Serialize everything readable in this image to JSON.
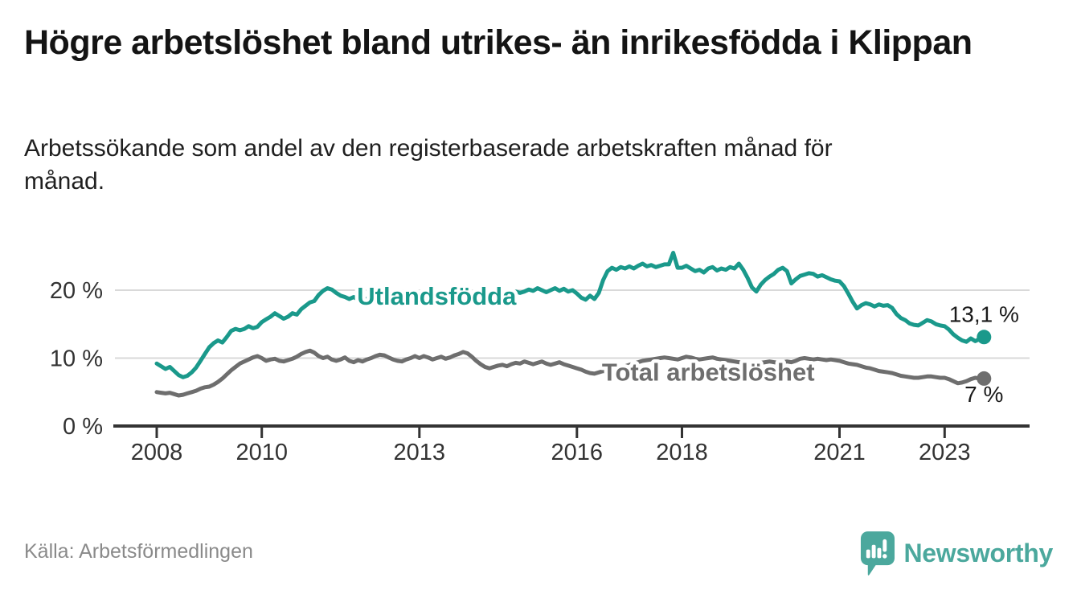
{
  "header": {
    "title": "Högre arbetslöshet bland utrikes- än inrikesfödda i Klippan",
    "subtitle": "Arbetssökande som andel av den registerbaserade arbetskraften månad för månad."
  },
  "footer": {
    "source": "Källa: Arbetsförmedlingen",
    "brand": "Newsworthy",
    "brand_icon": "speech-bubble-bar-chart-icon"
  },
  "colors": {
    "foreign_line": "#1a998b",
    "total_line": "#6e6e6e",
    "axis": "#333333",
    "grid": "#d9d9d9",
    "text": "#1a1a1a",
    "muted": "#8a8a8a",
    "brand": "#4ba89d"
  },
  "chart_data": {
    "type": "line",
    "title": "Högre arbetslöshet bland utrikes- än inrikesfödda i Klippan",
    "xlabel": "",
    "ylabel": "",
    "frequency": "monthly",
    "x_start_year": 2008,
    "x_end": "2023-10",
    "xlim": [
      2007.7,
      2024.6
    ],
    "ylim": [
      0,
      26
    ],
    "grid": "horizontal",
    "legend_position": "inline-labels",
    "x_ticks": [
      2008,
      2010,
      2013,
      2016,
      2018,
      2021,
      2023
    ],
    "y_ticks": [
      {
        "v": 0,
        "label": "0 %"
      },
      {
        "v": 10,
        "label": "10 %"
      },
      {
        "v": 20,
        "label": "20 %"
      }
    ],
    "series": [
      {
        "name": "Utlandsfödda",
        "slug": "utlandsfodda",
        "color": "#1a998b",
        "end_label": "13,1 %",
        "end_label_position": "above",
        "label_anchor": {
          "year": 2013.33,
          "value": 19.2
        },
        "values": [
          9.2,
          8.8,
          8.4,
          8.7,
          8.1,
          7.5,
          7.2,
          7.4,
          7.9,
          8.6,
          9.6,
          10.6,
          11.6,
          12.2,
          12.6,
          12.3,
          13.1,
          14.0,
          14.3,
          14.1,
          14.3,
          14.7,
          14.4,
          14.6,
          15.3,
          15.7,
          16.1,
          16.6,
          16.2,
          15.8,
          16.1,
          16.6,
          16.4,
          17.2,
          17.7,
          18.2,
          18.4,
          19.3,
          19.9,
          20.3,
          20.1,
          19.6,
          19.2,
          19.0,
          18.7,
          19.0,
          18.6,
          18.8,
          18.7,
          18.9,
          19.1,
          18.9,
          18.8,
          19.0,
          19.2,
          19.0,
          18.8,
          18.9,
          19.1,
          19.0,
          19.0,
          19.2,
          19.4,
          19.1,
          18.9,
          19.1,
          19.3,
          19.5,
          19.2,
          19.0,
          19.2,
          19.4,
          19.2,
          19.0,
          18.8,
          19.0,
          19.2,
          19.4,
          19.6,
          19.3,
          19.7,
          19.5,
          19.8,
          19.6,
          19.8,
          20.1,
          19.9,
          20.3,
          20.0,
          19.7,
          20.0,
          20.3,
          19.9,
          20.2,
          19.8,
          20.0,
          19.5,
          18.9,
          18.6,
          19.2,
          18.7,
          19.6,
          21.5,
          22.8,
          23.3,
          23.0,
          23.4,
          23.2,
          23.5,
          23.2,
          23.6,
          23.9,
          23.5,
          23.7,
          23.4,
          23.6,
          23.8,
          23.8,
          25.5,
          23.3,
          23.3,
          23.6,
          23.2,
          22.8,
          23.0,
          22.6,
          23.2,
          23.4,
          22.9,
          23.2,
          23.0,
          23.4,
          23.2,
          23.9,
          23.0,
          21.8,
          20.4,
          19.8,
          20.8,
          21.5,
          22.0,
          22.4,
          23.0,
          23.3,
          22.8,
          21.0,
          21.6,
          22.1,
          22.3,
          22.5,
          22.4,
          22.0,
          22.2,
          21.9,
          21.6,
          21.4,
          21.3,
          20.6,
          19.5,
          18.3,
          17.3,
          17.8,
          18.1,
          17.9,
          17.6,
          17.9,
          17.7,
          17.8,
          17.4,
          16.5,
          15.9,
          15.6,
          15.1,
          14.9,
          14.8,
          15.2,
          15.6,
          15.4,
          15.0,
          14.8,
          14.7,
          14.2,
          13.5,
          13.0,
          12.6,
          12.4,
          12.9,
          12.5,
          12.8,
          13.1
        ]
      },
      {
        "name": "Total arbetslöshet",
        "slug": "total-arbetsloshet",
        "color": "#6e6e6e",
        "end_label": "7 %",
        "end_label_position": "below",
        "label_anchor": {
          "year": 2018.5,
          "value": 8.0
        },
        "values": [
          5.0,
          4.9,
          4.8,
          4.9,
          4.7,
          4.5,
          4.6,
          4.8,
          5.0,
          5.2,
          5.5,
          5.7,
          5.8,
          6.1,
          6.5,
          7.0,
          7.6,
          8.2,
          8.7,
          9.2,
          9.5,
          9.8,
          10.1,
          10.3,
          10.0,
          9.6,
          9.8,
          9.9,
          9.6,
          9.5,
          9.7,
          9.9,
          10.2,
          10.6,
          10.9,
          11.1,
          10.8,
          10.3,
          10.0,
          10.2,
          9.8,
          9.6,
          9.8,
          10.1,
          9.6,
          9.4,
          9.7,
          9.5,
          9.8,
          10.0,
          10.3,
          10.5,
          10.4,
          10.1,
          9.8,
          9.6,
          9.5,
          9.8,
          10.0,
          10.3,
          10.0,
          10.3,
          10.1,
          9.8,
          10.0,
          10.2,
          9.9,
          10.1,
          10.4,
          10.6,
          10.9,
          10.7,
          10.2,
          9.6,
          9.1,
          8.7,
          8.5,
          8.7,
          8.9,
          9.0,
          8.8,
          9.1,
          9.3,
          9.2,
          9.5,
          9.3,
          9.1,
          9.3,
          9.5,
          9.2,
          9.0,
          9.2,
          9.4,
          9.1,
          8.9,
          8.7,
          8.5,
          8.3,
          8.0,
          7.8,
          7.7,
          7.9,
          8.1,
          8.0,
          8.2,
          8.4,
          8.6,
          8.8,
          9.0,
          9.2,
          9.4,
          9.6,
          9.7,
          9.8,
          9.9,
          10.0,
          10.1,
          10.0,
          9.9,
          9.8,
          10.0,
          10.2,
          10.1,
          9.9,
          9.8,
          9.9,
          10.0,
          10.1,
          9.9,
          9.8,
          9.7,
          9.6,
          9.5,
          9.4,
          9.3,
          9.2,
          9.1,
          9.2,
          9.3,
          9.4,
          9.5,
          9.4,
          9.3,
          9.4,
          9.5,
          9.4,
          9.6,
          9.9,
          10.0,
          9.9,
          9.8,
          9.9,
          9.8,
          9.7,
          9.8,
          9.7,
          9.6,
          9.4,
          9.2,
          9.1,
          9.0,
          8.8,
          8.6,
          8.5,
          8.3,
          8.1,
          8.0,
          7.9,
          7.8,
          7.6,
          7.4,
          7.3,
          7.2,
          7.1,
          7.1,
          7.2,
          7.3,
          7.3,
          7.2,
          7.1,
          7.1,
          6.9,
          6.6,
          6.3,
          6.4,
          6.6,
          6.9,
          7.1,
          7.0,
          7.0
        ]
      }
    ]
  }
}
